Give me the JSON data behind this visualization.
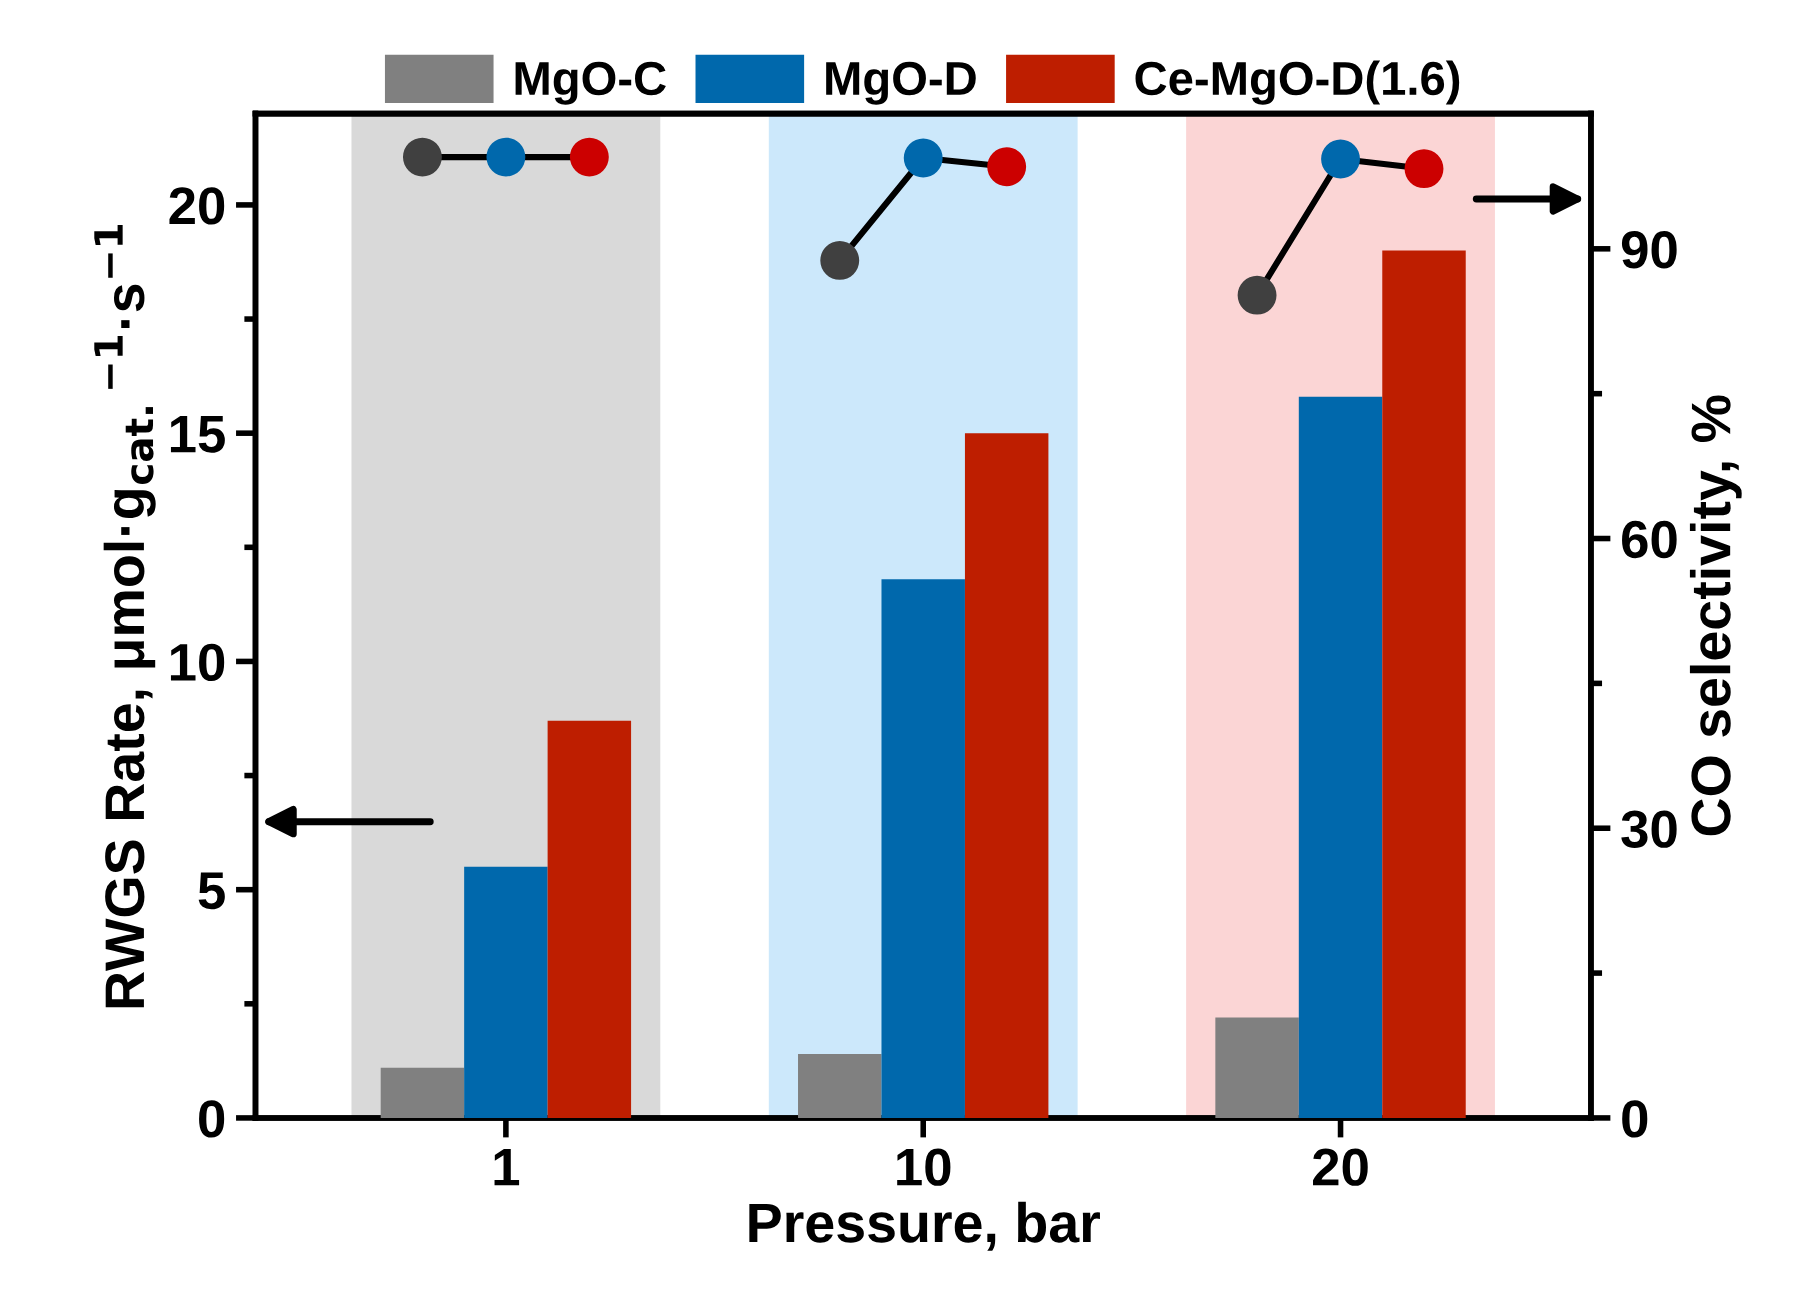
{
  "chart_data": {
    "type": "bar",
    "xlabel": "Pressure, bar",
    "ylabel": "RWGS Rate, μmol·g$_{cat.}$$^{−1}$·s$^{−1}$",
    "y2label": "CO selectivity, %",
    "categories": [
      "1",
      "10",
      "20"
    ],
    "series": [
      {
        "name": "MgO-C",
        "color": "#808080",
        "values": [
          1.1,
          1.4,
          2.2
        ]
      },
      {
        "name": "MgO-D",
        "color": "#0068ac",
        "values": [
          5.5,
          11.8,
          15.8
        ]
      },
      {
        "name": "Ce-MgO-D(1.6)",
        "color": "#be1e00",
        "values": [
          8.7,
          15.0,
          19.0
        ]
      },
      {
        "type": "scatter",
        "axis": "y2",
        "color": "#404040",
        "x": [
          "1",
          "10",
          "20"
        ],
        "values": [
          99.5,
          88.8,
          85.2
        ]
      },
      {
        "type": "scatter",
        "axis": "y2",
        "color": "#0068ac",
        "x": [
          "1",
          "10",
          "20"
        ],
        "values": [
          99.5,
          99.4,
          99.3
        ]
      },
      {
        "type": "scatter",
        "axis": "y2",
        "color": "#cc0000",
        "x": [
          "1",
          "10",
          "20"
        ],
        "values": [
          99.5,
          98.5,
          98.3
        ]
      }
    ],
    "bands": [
      {
        "axis": "x",
        "from": "1",
        "to": "1",
        "color": "#d9d9d9"
      },
      {
        "axis": "x",
        "from": "10",
        "to": "10",
        "color": "#cce8fb"
      },
      {
        "axis": "x",
        "from": "20",
        "to": "20",
        "color": "#fbd5d5"
      }
    ],
    "ylim": [
      0,
      22
    ],
    "yticks": [
      0,
      5,
      10,
      15,
      20
    ],
    "y2lim": [
      0,
      104
    ],
    "y2ticks": [
      0,
      30,
      60,
      90
    ],
    "marker": "circle",
    "line_style": "solid",
    "grid": false,
    "legend": "top"
  }
}
